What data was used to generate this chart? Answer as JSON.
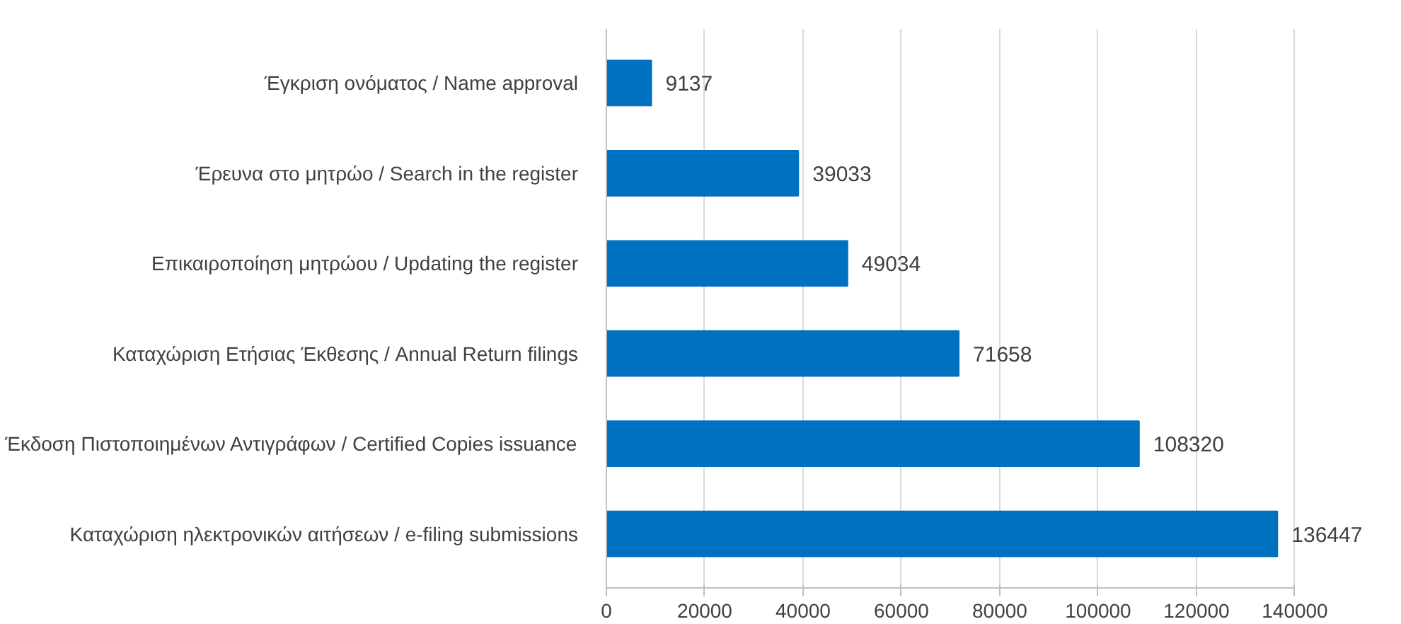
{
  "chart_data": {
    "type": "bar",
    "orientation": "horizontal",
    "categories": [
      "Έγκριση ονόματος / Name approval",
      "Έρευνα στο μητρώο / Search in the register",
      "Επικαιροποίηση μητρώου / Updating the register",
      "Καταχώριση Ετήσιας Έκθεσης / Annual Return filings",
      "Έκδοση Πιστοποιημένων Αντιγράφων / Certified Copies issuance",
      "Καταχώριση ηλεκτρονικών αιτήσεων / e-filing submissions"
    ],
    "values": [
      9137,
      39033,
      49034,
      71658,
      108320,
      136447
    ],
    "color": "#0070c0",
    "xlim": [
      0,
      140000
    ],
    "xticks": [
      0,
      20000,
      40000,
      60000,
      80000,
      100000,
      120000,
      140000
    ],
    "grid": "x",
    "data_labels": true
  }
}
